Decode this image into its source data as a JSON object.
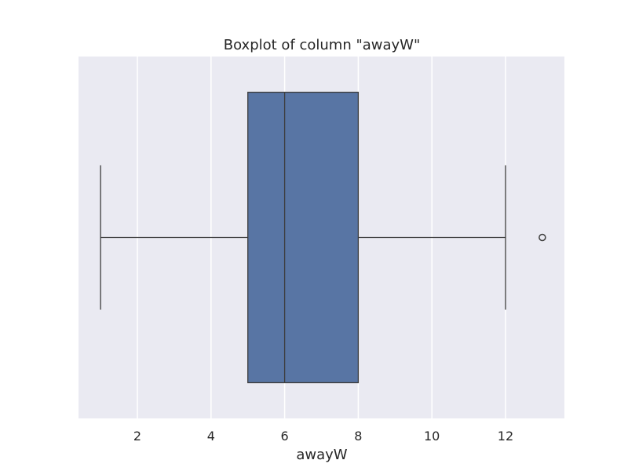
{
  "chart_data": {
    "type": "boxplot",
    "title": "Boxplot of column \"awayW\"",
    "xlabel": "awayW",
    "ylabel": "",
    "xlim": [
      0.4,
      13.6
    ],
    "xticks": [
      2,
      4,
      6,
      8,
      10,
      12
    ],
    "grid": true,
    "boxes": [
      {
        "whisker_low": 1,
        "q1": 5,
        "median": 6,
        "q3": 8,
        "whisker_high": 12,
        "outliers": [
          13
        ]
      }
    ],
    "colors": {
      "background": "#eaeaf2",
      "grid": "#ffffff",
      "box_fill": "#5875a4",
      "box_edge": "#3d3d3d",
      "whisker": "#3d3d3d",
      "outlier_edge": "#3d3d3d"
    }
  }
}
